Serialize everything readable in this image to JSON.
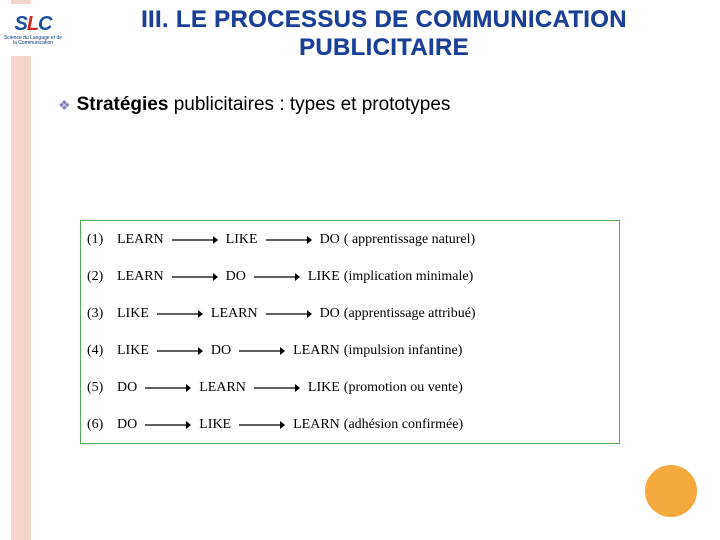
{
  "colors": {
    "salmon_bar": "#f5d4c9",
    "title_color": "#1b3f94",
    "bullet_glyph_color": "#7f7fbf",
    "diagram_border": "#5aa85a",
    "arrow_color": "#000000",
    "circle_fill": "#f4a93c",
    "background": "#ffffff",
    "logo_blue": "#1a4fa0",
    "logo_red": "#c92a2a"
  },
  "logo": {
    "letters": [
      "S",
      "L",
      "C"
    ],
    "subtitle": "Science du Langage et de la Communication"
  },
  "title": {
    "line1": "III.  LE PROCESSUS DE COMMUNICATION",
    "line2": "PUBLICITAIRE"
  },
  "bullet": {
    "glyph": "❖",
    "bold": "Stratégies",
    "rest": " publicitaires : types et prototypes"
  },
  "diagram": {
    "arrow": {
      "length": 46,
      "stroke": "#000000",
      "stroke_width": 1.2,
      "head": 5
    },
    "rows": [
      {
        "idx": "(1)",
        "n1": "LEARN",
        "n2": "LIKE",
        "n3": "DO",
        "note": "( apprentissage naturel)"
      },
      {
        "idx": "(2)",
        "n1": "LEARN",
        "n2": "DO",
        "n3": "LIKE",
        "note": "(implication minimale)"
      },
      {
        "idx": "(3)",
        "n1": "LIKE",
        "n2": "LEARN",
        "n3": "DO",
        "note": "(apprentissage attribué)"
      },
      {
        "idx": "(4)",
        "n1": "LIKE",
        "n2": "DO",
        "n3": "LEARN",
        "note": "(impulsion infantine)"
      },
      {
        "idx": "(5)",
        "n1": "DO",
        "n2": "LEARN",
        "n3": "LIKE",
        "note": " (promotion ou vente)"
      },
      {
        "idx": "(6)",
        "n1": "DO",
        "n2": "LIKE",
        "n3": "LEARN",
        "note": "(adhésion confirmée)"
      }
    ]
  }
}
